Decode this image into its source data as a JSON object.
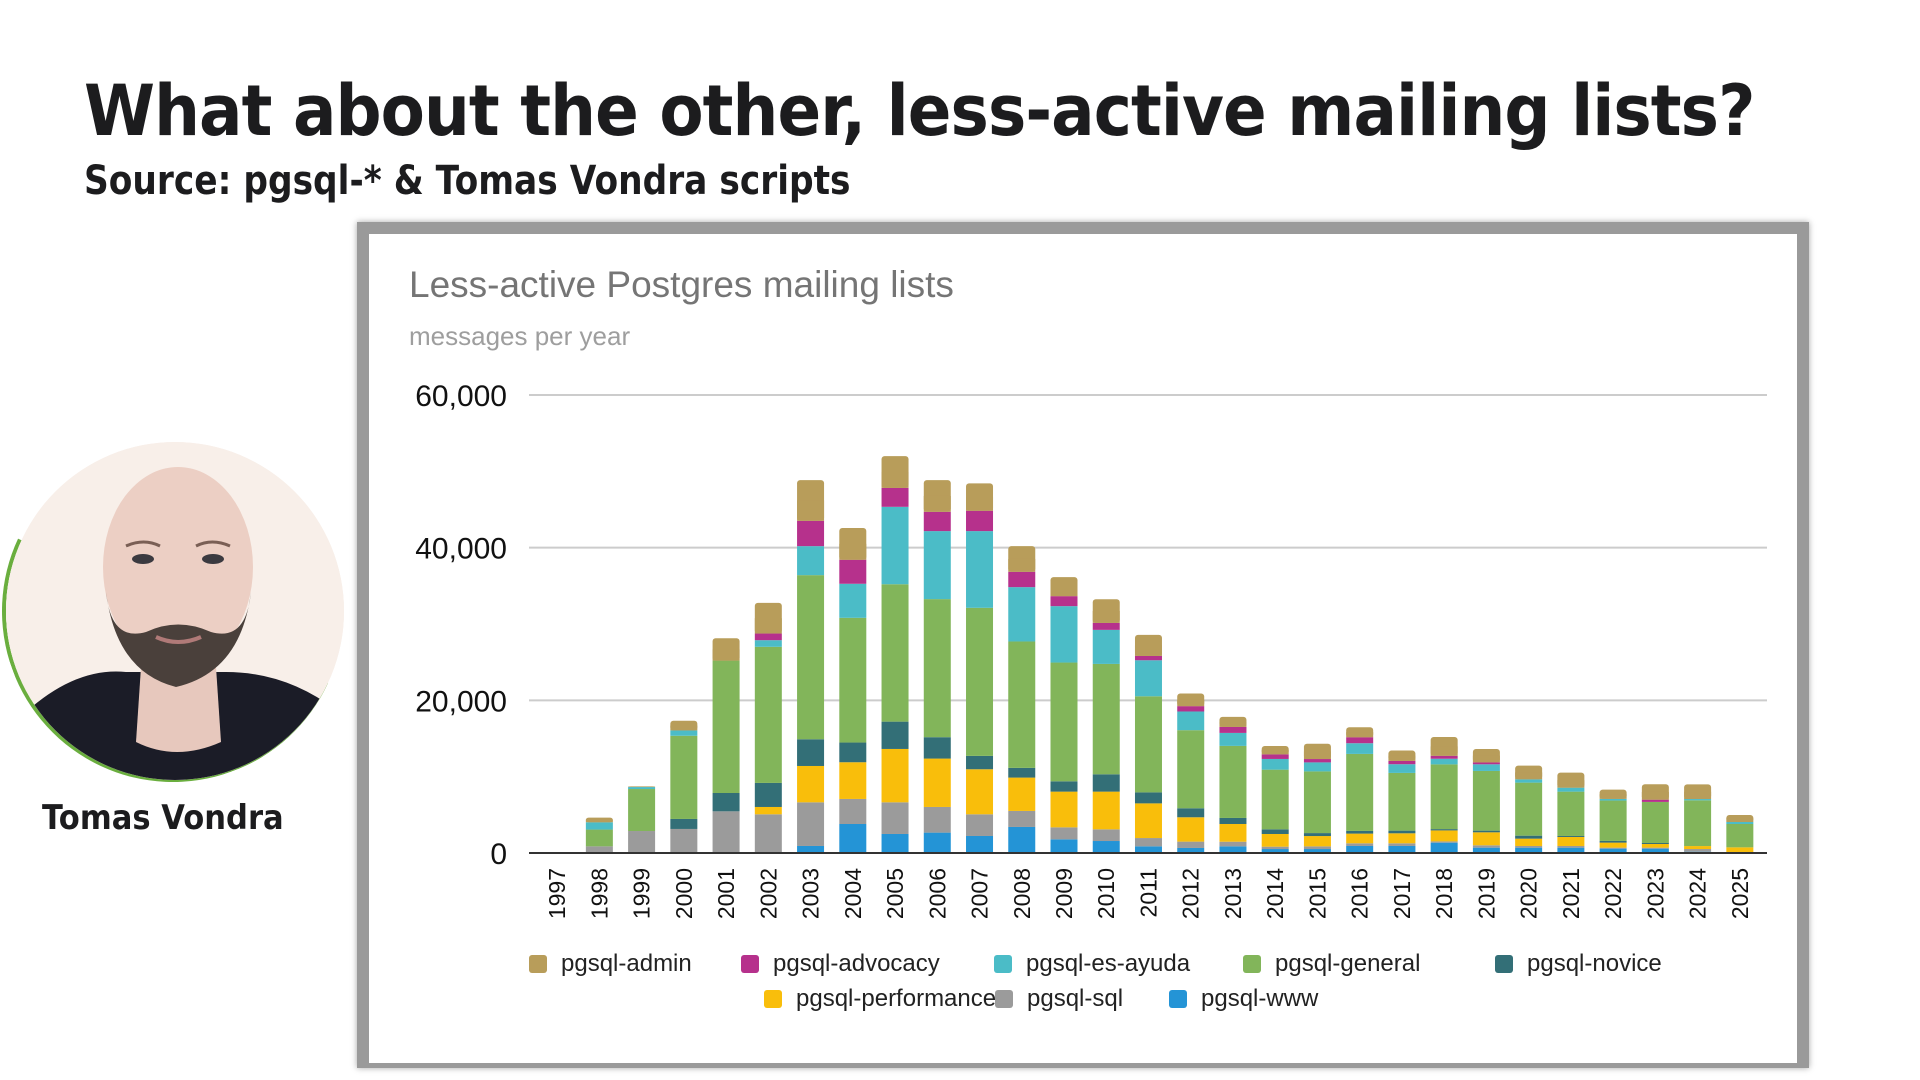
{
  "slide": {
    "title": "What about the other, less-active mailing lists?",
    "subtitle": "Source: pgsql-* & Tomas Vondra scripts",
    "presenter_name": "Tomas Vondra",
    "accent_color": "#6aae3e"
  },
  "chart_data": {
    "type": "bar",
    "stacked": true,
    "title": "Less-active Postgres mailing lists",
    "subtitle": "messages per year",
    "xlabel": "",
    "ylabel": "",
    "ylim": [
      0,
      60000
    ],
    "yticks": [
      0,
      20000,
      40000,
      60000
    ],
    "ytick_labels": [
      "0",
      "20,000",
      "40,000",
      "60,000"
    ],
    "grid": true,
    "legend_position": "bottom",
    "categories": [
      "1997",
      "1998",
      "1999",
      "2000",
      "2001",
      "2002",
      "2003",
      "2004",
      "2005",
      "2006",
      "2007",
      "2008",
      "2009",
      "2010",
      "2011",
      "2012",
      "2013",
      "2014",
      "2015",
      "2016",
      "2017",
      "2018",
      "2019",
      "2020",
      "2021",
      "2022",
      "2023",
      "2024",
      "2025"
    ],
    "series": [
      {
        "name": "pgsql-www",
        "color": "#2494d6",
        "values": [
          0,
          0,
          0,
          0,
          0,
          0,
          920,
          3800,
          2490,
          2670,
          2230,
          3410,
          1790,
          1570,
          870,
          660,
          870,
          520,
          520,
          920,
          920,
          1350,
          700,
          700,
          700,
          570,
          570,
          170,
          0
        ]
      },
      {
        "name": "pgsql-sql",
        "color": "#9b9b9b",
        "values": [
          0,
          870,
          2880,
          3150,
          5460,
          5070,
          5720,
          3280,
          4150,
          3360,
          2840,
          2100,
          1570,
          1530,
          1090,
          830,
          610,
          310,
          350,
          350,
          350,
          170,
          310,
          220,
          220,
          130,
          130,
          350,
          0
        ]
      },
      {
        "name": "pgsql-performance",
        "color": "#f9be0b",
        "values": [
          0,
          0,
          0,
          0,
          0,
          960,
          4760,
          4810,
          6990,
          6340,
          5900,
          4370,
          4680,
          4940,
          4540,
          3190,
          2320,
          1660,
          1350,
          1270,
          1310,
          1440,
          1700,
          960,
          1180,
          660,
          480,
          390,
          740
        ]
      },
      {
        "name": "pgsql-novice",
        "color": "#336f77",
        "values": [
          0,
          0,
          0,
          1310,
          2400,
          3150,
          3500,
          2580,
          3580,
          2800,
          1750,
          1270,
          1350,
          2270,
          1440,
          1180,
          790,
          610,
          390,
          350,
          350,
          170,
          220,
          390,
          130,
          220,
          130,
          0,
          0
        ]
      },
      {
        "name": "pgsql-general",
        "color": "#82b55a",
        "values": [
          0,
          2200,
          5500,
          10900,
          17350,
          17830,
          21500,
          16340,
          18000,
          18090,
          19400,
          16560,
          15560,
          14460,
          12590,
          10230,
          9440,
          7820,
          8080,
          10090,
          7560,
          8480,
          7820,
          6950,
          5810,
          5290,
          5380,
          5990,
          3060
        ]
      },
      {
        "name": "pgsql-es-ayuda",
        "color": "#4bbcc7",
        "values": [
          0,
          960,
          260,
          700,
          0,
          870,
          3800,
          4460,
          10140,
          8910,
          10050,
          7120,
          7390,
          4460,
          4720,
          2450,
          1700,
          1400,
          1180,
          1400,
          1140,
          740,
          870,
          440,
          520,
          220,
          0,
          170,
          260
        ]
      },
      {
        "name": "pgsql-advocacy",
        "color": "#b6318c",
        "values": [
          0,
          0,
          0,
          0,
          0,
          870,
          3320,
          3150,
          2490,
          2530,
          2670,
          2010,
          1310,
          920,
          570,
          700,
          790,
          610,
          440,
          790,
          440,
          390,
          260,
          0,
          0,
          0,
          300,
          0,
          0
        ]
      },
      {
        "name": "pgsql-admin",
        "color": "#b89d5a",
        "values": [
          0,
          610,
          90,
          1270,
          2930,
          4020,
          5330,
          4150,
          4150,
          4150,
          3580,
          3365,
          2490,
          3100,
          2750,
          1660,
          1310,
          1090,
          2010,
          1310,
          1350,
          2450,
          1750,
          1790,
          1970,
          1220,
          2010,
          1920,
          920
        ]
      }
    ],
    "legend_order": [
      "pgsql-admin",
      "pgsql-advocacy",
      "pgsql-es-ayuda",
      "pgsql-general",
      "pgsql-novice",
      "pgsql-performance",
      "pgsql-sql",
      "pgsql-www"
    ]
  }
}
